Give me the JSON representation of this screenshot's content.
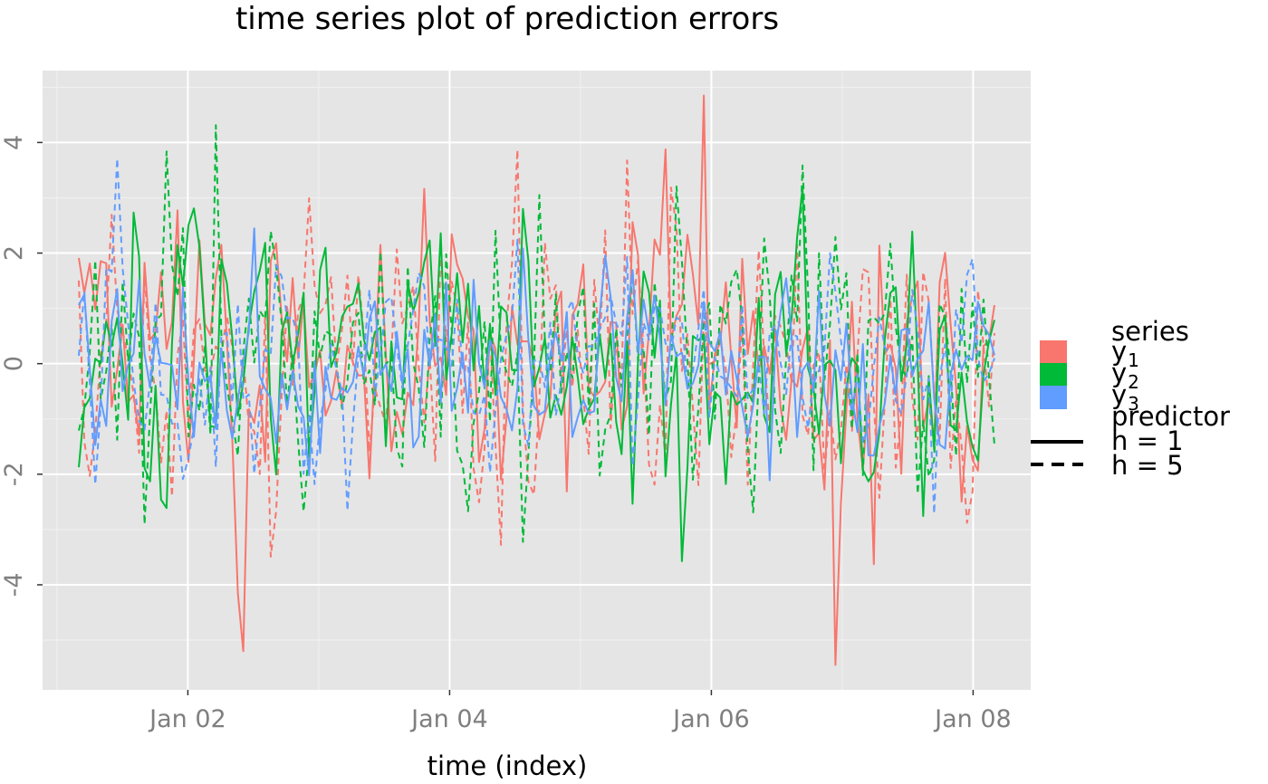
{
  "chart_data": {
    "type": "line",
    "title": "time series plot of prediction errors",
    "xlabel": "time (index)",
    "ylabel": "",
    "x_ticks": [
      "Jan 02",
      "Jan 04",
      "Jan 06",
      "Jan 08"
    ],
    "y_ticks": [
      "-4",
      "-2",
      "0",
      "2",
      "4"
    ],
    "xlim": [
      "Jan 01 04:00",
      "Jan 08 04:00"
    ],
    "ylim": [
      -5.9,
      5.3
    ],
    "grid": true,
    "legend": {
      "placement": "right",
      "groups": [
        {
          "title": "series",
          "entries": [
            {
              "base": "y",
              "sub": "1",
              "color": "#F8766D"
            },
            {
              "base": "y",
              "sub": "2",
              "color": "#00BA38"
            },
            {
              "base": "y",
              "sub": "3",
              "color": "#619CFF"
            }
          ]
        },
        {
          "title": "predictor",
          "entries": [
            {
              "label": "h = 1",
              "linetype": "solid"
            },
            {
              "label": "h = 5",
              "linetype": "dashed"
            }
          ]
        }
      ]
    },
    "series": [
      {
        "series": "y1",
        "predictor": "h = 1",
        "color": "#F8766D",
        "linetype": "solid"
      },
      {
        "series": "y1",
        "predictor": "h = 5",
        "color": "#F8766D",
        "linetype": "dashed"
      },
      {
        "series": "y2",
        "predictor": "h = 1",
        "color": "#00BA38",
        "linetype": "solid"
      },
      {
        "series": "y2",
        "predictor": "h = 5",
        "color": "#00BA38",
        "linetype": "dashed"
      },
      {
        "series": "y3",
        "predictor": "h = 1",
        "color": "#619CFF",
        "linetype": "solid"
      },
      {
        "series": "y3",
        "predictor": "h = 5",
        "color": "#619CFF",
        "linetype": "dashed"
      }
    ],
    "notable_values": {
      "max_y": 4.85,
      "max_at": "Jan 05 22:00",
      "min_y": -5.45,
      "min_at": "Jan 06 22:00"
    }
  }
}
